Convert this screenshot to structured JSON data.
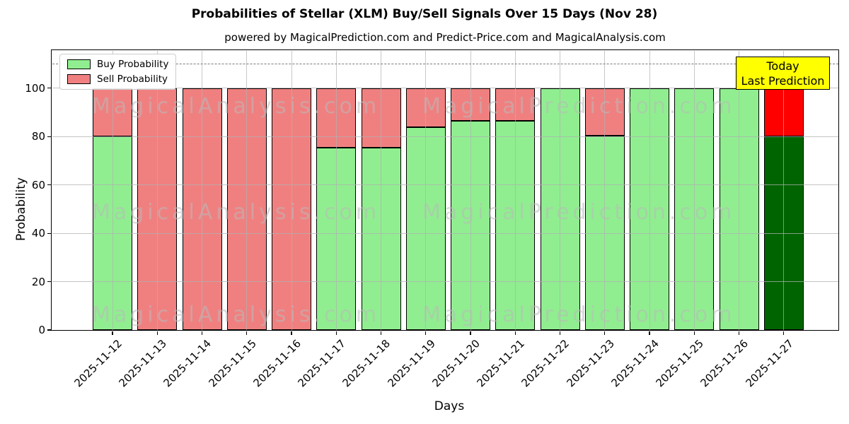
{
  "title": "Probabilities of Stellar (XLM) Buy/Sell Signals Over 15 Days (Nov 28)",
  "subtitle": "powered by MagicalPrediction.com and Predict-Price.com and MagicalAnalysis.com",
  "legend": {
    "items": [
      {
        "label": "Buy Probability",
        "color": "#90EE90"
      },
      {
        "label": "Sell Probability",
        "color": "#F08080"
      }
    ]
  },
  "annotation": {
    "lines": [
      "Today",
      "Last Prediction"
    ],
    "bg_color": "#FFFF00"
  },
  "watermarks": {
    "left_text": "MagicalAnalysis.com",
    "right_text": "MagicalPrediction.com",
    "rows": 3
  },
  "chart_data": {
    "type": "bar",
    "stacked": true,
    "title": "Probabilities of Stellar (XLM) Buy/Sell Signals Over 15 Days (Nov 28)",
    "xlabel": "Days",
    "ylabel": "Probability",
    "categories": [
      "2025-11-12",
      "2025-11-13",
      "2025-11-14",
      "2025-11-15",
      "2025-11-16",
      "2025-11-17",
      "2025-11-18",
      "2025-11-19",
      "2025-11-20",
      "2025-11-21",
      "2025-11-22",
      "2025-11-23",
      "2025-11-24",
      "2025-11-25",
      "2025-11-26",
      "2025-11-27"
    ],
    "series": [
      {
        "name": "Buy Probability",
        "color": "#90EE90",
        "values": [
          80,
          0,
          0,
          0,
          0,
          75.5,
          75.5,
          84,
          86.5,
          86.5,
          100,
          80.5,
          100,
          100,
          100,
          80
        ]
      },
      {
        "name": "Sell Probability",
        "color": "#F08080",
        "values": [
          20,
          100,
          100,
          100,
          100,
          24.5,
          24.5,
          16,
          13.5,
          13.5,
          0,
          19.5,
          0,
          0,
          0,
          20
        ]
      }
    ],
    "today_bar": {
      "index": 15,
      "buy_color": "#006400",
      "sell_color": "#FF0000"
    },
    "yticks": [
      0,
      20,
      40,
      60,
      80,
      100
    ],
    "ylim": [
      0,
      115.6
    ],
    "dashed_line_y": 110,
    "grid": true,
    "legend_position": "upper left"
  }
}
